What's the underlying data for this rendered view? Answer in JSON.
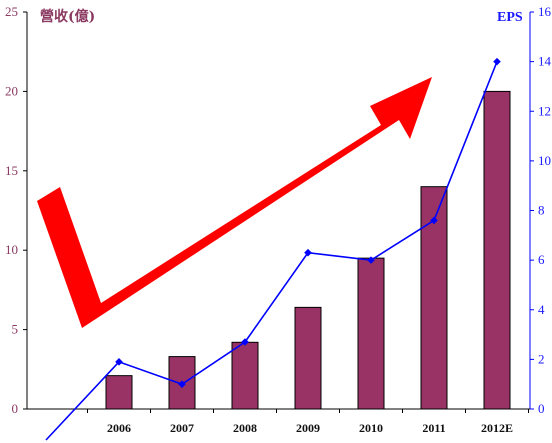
{
  "chart_data": {
    "type": "bar",
    "categories": [
      "2006",
      "2007",
      "2008",
      "2009",
      "2010",
      "2011",
      "2012E"
    ],
    "series": [
      {
        "name": "營收(億)",
        "type": "bar",
        "axis": "left",
        "color": "#993366",
        "values": [
          2.1,
          3.3,
          4.2,
          6.4,
          9.5,
          14.0,
          20.0
        ]
      },
      {
        "name": "EPS",
        "type": "line",
        "axis": "right",
        "color": "#0000FF",
        "values": [
          1.9,
          1.0,
          2.7,
          6.3,
          6.0,
          7.6,
          14.0
        ]
      }
    ],
    "ylabel_left": "營收(億)",
    "ylabel_right": "EPS",
    "ylim_left": [
      0,
      25
    ],
    "ylim_right": [
      0,
      16
    ],
    "yticks_left": [
      0,
      5,
      10,
      15,
      20,
      25
    ],
    "yticks_right": [
      0,
      2,
      4,
      6,
      8,
      10,
      12,
      14,
      16
    ],
    "grid": false,
    "legend": "none",
    "annotation": {
      "type": "check-arrow",
      "color": "#FF0000",
      "meaning": "upward trend"
    }
  }
}
